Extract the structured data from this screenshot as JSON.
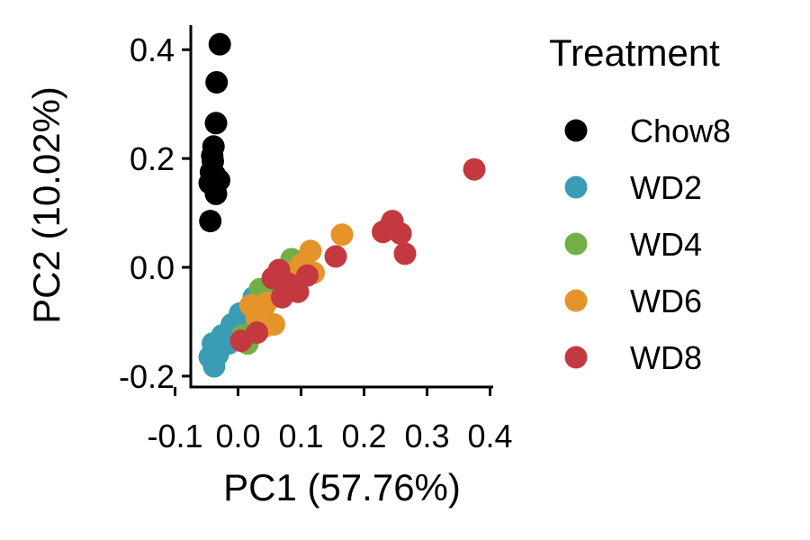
{
  "chart_data": {
    "type": "scatter",
    "xlabel": "PC1 (57.76%)",
    "ylabel": "PC2 (10.02%)",
    "xlim": [
      -0.075,
      0.405
    ],
    "ylim": [
      -0.22,
      0.445
    ],
    "xticks": [
      -0.1,
      0.0,
      0.1,
      0.2,
      0.3,
      0.4
    ],
    "xtick_labels": [
      "-0.1",
      "0.0",
      "0.1",
      "0.2",
      "0.3",
      "0.4"
    ],
    "yticks": [
      -0.2,
      0.0,
      0.2,
      0.4
    ],
    "ytick_labels": [
      "-0.2",
      "0.0",
      "0.2",
      "0.4"
    ],
    "grid": false,
    "legend": {
      "title": "Treatment",
      "placement": "right, outside plot"
    },
    "series": [
      {
        "name": "Chow8",
        "color": "#000000",
        "points": [
          [
            -0.029,
            0.41
          ],
          [
            -0.034,
            0.34
          ],
          [
            -0.035,
            0.265
          ],
          [
            -0.039,
            0.222
          ],
          [
            -0.041,
            0.205
          ],
          [
            -0.04,
            0.195
          ],
          [
            -0.043,
            0.175
          ],
          [
            -0.03,
            0.16
          ],
          [
            -0.037,
            0.17
          ],
          [
            -0.045,
            0.155
          ],
          [
            -0.035,
            0.135
          ],
          [
            -0.044,
            0.085
          ]
        ]
      },
      {
        "name": "WD2",
        "color": "#3A9CB5",
        "points": [
          [
            -0.045,
            -0.165
          ],
          [
            -0.04,
            -0.14
          ],
          [
            -0.038,
            -0.182
          ],
          [
            -0.025,
            -0.125
          ],
          [
            -0.015,
            -0.14
          ],
          [
            -0.01,
            -0.105
          ],
          [
            0.003,
            -0.085
          ],
          [
            0.013,
            -0.095
          ],
          [
            0.025,
            -0.055
          ],
          [
            0.0,
            -0.115
          ],
          [
            0.018,
            -0.075
          ],
          [
            -0.032,
            -0.16
          ]
        ]
      },
      {
        "name": "WD4",
        "color": "#71AF48",
        "points": [
          [
            0.015,
            -0.14
          ],
          [
            0.007,
            -0.125
          ],
          [
            0.03,
            -0.09
          ],
          [
            0.04,
            -0.075
          ],
          [
            0.035,
            -0.04
          ],
          [
            0.05,
            -0.055
          ],
          [
            0.085,
            0.015
          ]
        ]
      },
      {
        "name": "WD6",
        "color": "#E59429",
        "points": [
          [
            0.02,
            -0.07
          ],
          [
            0.03,
            -0.095
          ],
          [
            0.04,
            -0.11
          ],
          [
            0.057,
            -0.105
          ],
          [
            0.045,
            -0.065
          ],
          [
            0.075,
            -0.025
          ],
          [
            0.085,
            -0.01
          ],
          [
            0.1,
            0.005
          ],
          [
            0.115,
            0.03
          ],
          [
            0.12,
            -0.01
          ],
          [
            0.165,
            0.06
          ],
          [
            0.24,
            0.075
          ]
        ]
      },
      {
        "name": "WD8",
        "color": "#C4393F",
        "points": [
          [
            0.005,
            -0.135
          ],
          [
            0.03,
            -0.12
          ],
          [
            0.055,
            -0.02
          ],
          [
            0.065,
            -0.005
          ],
          [
            0.07,
            -0.055
          ],
          [
            0.08,
            -0.03
          ],
          [
            0.095,
            -0.045
          ],
          [
            0.11,
            -0.015
          ],
          [
            0.155,
            0.02
          ],
          [
            0.23,
            0.065
          ],
          [
            0.245,
            0.085
          ],
          [
            0.258,
            0.062
          ],
          [
            0.265,
            0.025
          ],
          [
            0.375,
            0.18
          ]
        ]
      }
    ]
  }
}
